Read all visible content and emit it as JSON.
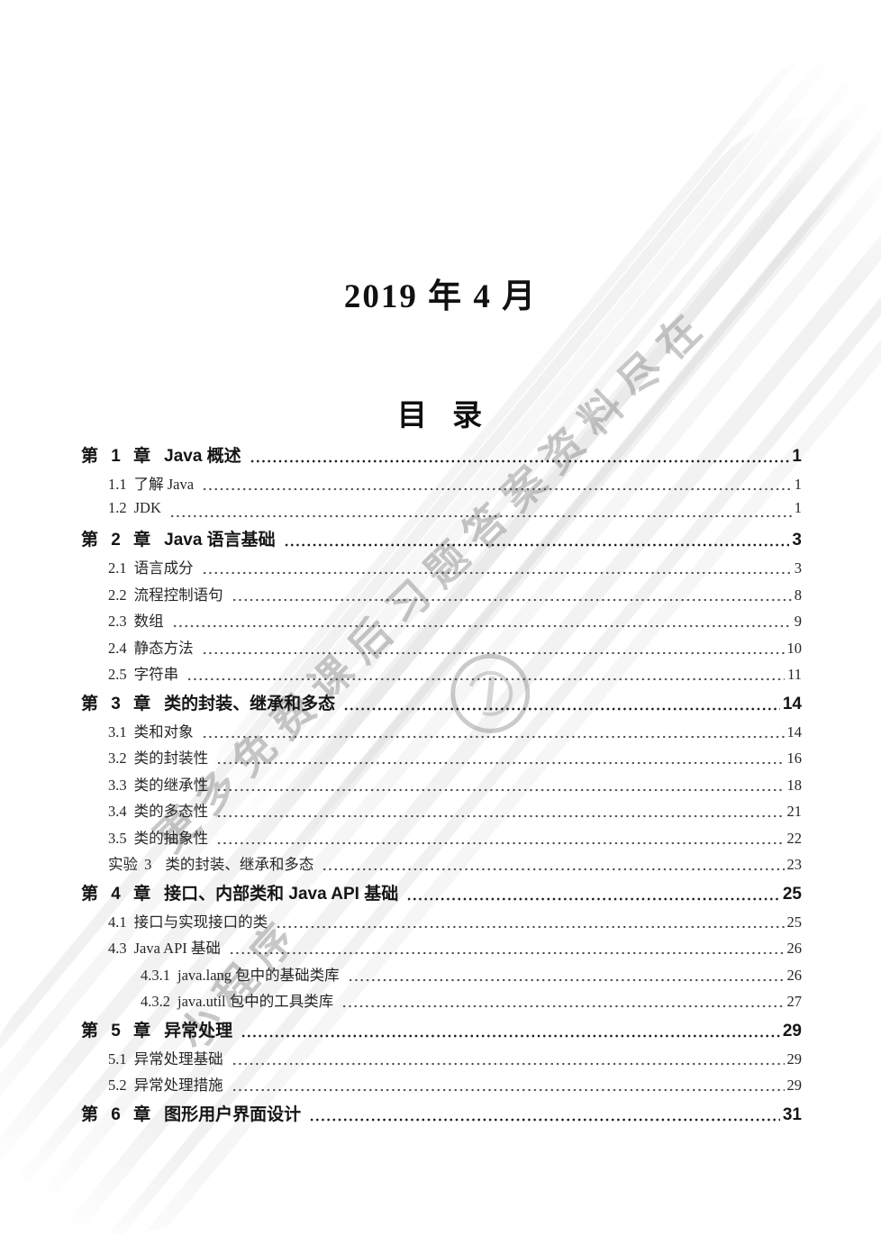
{
  "page": {
    "date_title": "2019 年 4 月",
    "toc_title": "目 录"
  },
  "colors": {
    "text": "#1c1c1c",
    "watermark_gray": "#9a9a9a",
    "background": "#ffffff"
  },
  "watermark": {
    "line1": "更多免费课后习题答案资料尽在",
    "line2": "小程序",
    "logo": "circular-seal-icon"
  },
  "toc": {
    "entries": [
      {
        "level": "chapter",
        "label": "第 1 章",
        "title": "Java 概述",
        "page": "1"
      },
      {
        "level": "section",
        "label": "1.1",
        "title": "了解 Java",
        "page": "1"
      },
      {
        "level": "section",
        "label": "1.2",
        "title": "JDK",
        "page": "1"
      },
      {
        "level": "chapter",
        "label": "第 2 章",
        "title": "Java 语言基础",
        "page": "3"
      },
      {
        "level": "section",
        "label": "2.1",
        "title": "语言成分",
        "page": "3"
      },
      {
        "level": "section",
        "label": "2.2",
        "title": "流程控制语句",
        "page": "8"
      },
      {
        "level": "section",
        "label": "2.3",
        "title": "数组",
        "page": "9"
      },
      {
        "level": "section",
        "label": "2.4",
        "title": "静态方法",
        "page": "10"
      },
      {
        "level": "section",
        "label": "2.5",
        "title": "字符串",
        "page": "11"
      },
      {
        "level": "chapter",
        "label": "第 3 章",
        "title": "类的封装、继承和多态",
        "page": "14"
      },
      {
        "level": "section",
        "label": "3.1",
        "title": "类和对象",
        "page": "14"
      },
      {
        "level": "section",
        "label": "3.2",
        "title": "类的封装性",
        "page": "16"
      },
      {
        "level": "section",
        "label": "3.3",
        "title": "类的继承性",
        "page": "18"
      },
      {
        "level": "section",
        "label": "3.4",
        "title": "类的多态性",
        "page": "21"
      },
      {
        "level": "section",
        "label": "3.5",
        "title": "类的抽象性",
        "page": "22"
      },
      {
        "level": "lab",
        "label": "实验 3",
        "title": "类的封装、继承和多态",
        "page": "23"
      },
      {
        "level": "chapter",
        "label": "第 4 章",
        "title": "接口、内部类和 Java API 基础",
        "page": "25"
      },
      {
        "level": "section",
        "label": "4.1",
        "title": "接口与实现接口的类",
        "page": "25"
      },
      {
        "level": "section",
        "label": "4.3",
        "title": "Java API 基础",
        "page": "26"
      },
      {
        "level": "subsection",
        "label": "4.3.1",
        "title": "java.lang 包中的基础类库",
        "page": "26"
      },
      {
        "level": "subsection",
        "label": "4.3.2",
        "title": "java.util 包中的工具类库",
        "page": "27"
      },
      {
        "level": "chapter",
        "label": "第 5 章",
        "title": "异常处理",
        "page": "29"
      },
      {
        "level": "section",
        "label": "5.1",
        "title": "异常处理基础",
        "page": "29"
      },
      {
        "level": "section",
        "label": "5.2",
        "title": "异常处理措施",
        "page": "29"
      },
      {
        "level": "chapter",
        "label": "第 6 章",
        "title": "图形用户界面设计",
        "page": "31"
      }
    ]
  }
}
